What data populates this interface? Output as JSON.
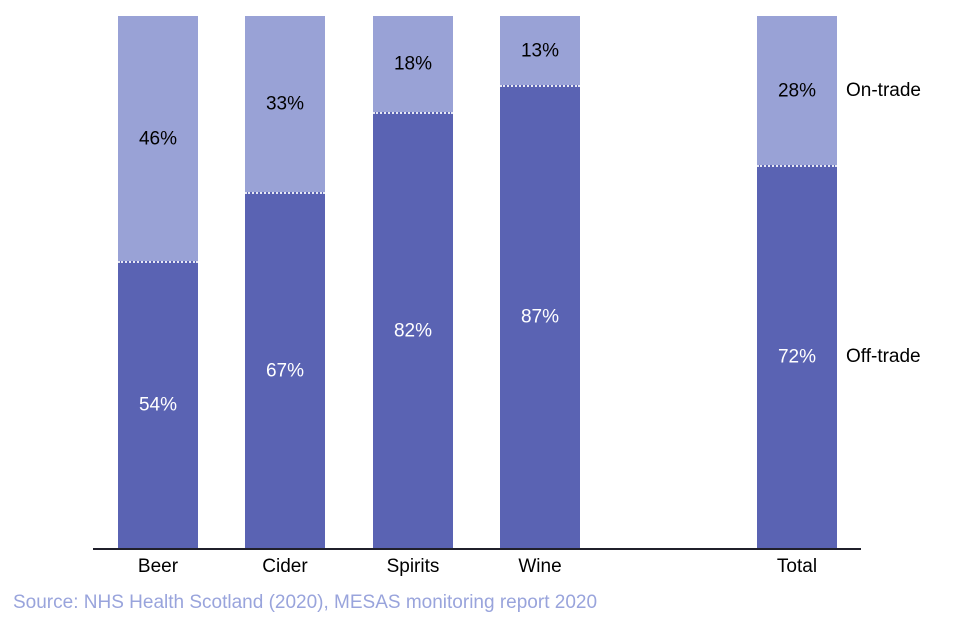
{
  "chart_data": {
    "type": "bar",
    "subtype": "100-percent-stacked-column",
    "title": "",
    "categories": [
      "Beer",
      "Cider",
      "Spirits",
      "Wine",
      "Total"
    ],
    "series": [
      {
        "name": "Off-trade",
        "values": [
          54,
          67,
          82,
          87,
          72
        ],
        "color": "#5a63b3",
        "label_color": "#ffffff"
      },
      {
        "name": "On-trade",
        "values": [
          46,
          33,
          18,
          13,
          28
        ],
        "color": "#99a2d6",
        "label_color": "#000000"
      }
    ],
    "value_format": "percent",
    "ylim": [
      0,
      100
    ],
    "grid": false,
    "legend_position": "right-of-total-bar",
    "axis_color": "#20202b",
    "source": "Source: NHS Health Scotland (2020), MESAS monitoring report 2020",
    "source_color": "#99a4dc"
  }
}
